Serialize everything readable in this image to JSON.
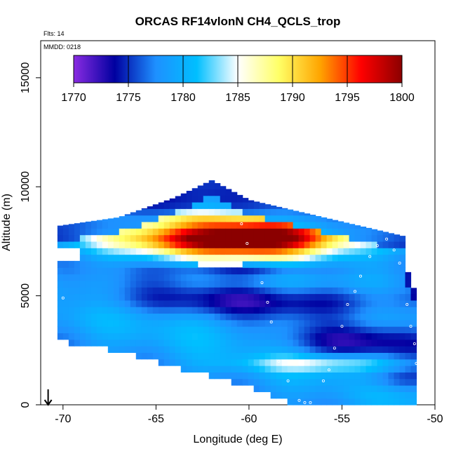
{
  "chart_data": {
    "type": "heatmap",
    "title": "ORCAS RF14vlonN CH4_QCLS_trop",
    "xlabel": "Longitude (deg E)",
    "ylabel": "Altitude (m)",
    "xlim": [
      -71.2,
      -50
    ],
    "ylim": [
      0,
      16700
    ],
    "x_ticks": [
      -70,
      -65,
      -60,
      -55,
      -50
    ],
    "y_ticks": [
      0,
      5000,
      10000,
      15000
    ],
    "annotations": {
      "flights": "Flts: 14",
      "date": "MMDD: 0218"
    },
    "colorbar": {
      "min": 1770,
      "max": 1800,
      "ticks": [
        1770,
        1775,
        1780,
        1785,
        1790,
        1795,
        1800
      ],
      "stops": [
        "#8a2be2",
        "#0000a0",
        "#1e90ff",
        "#00bfff",
        "#ffffff",
        "#ffff66",
        "#ffa500",
        "#ff0000",
        "#8b0000"
      ]
    },
    "grid": false,
    "legend": "colorbar-top",
    "field": {
      "x_start": -70.3,
      "x_end": -51.0,
      "y_step_m": 300,
      "upper_envelope": [
        [
          -70.3,
          8200
        ],
        [
          -67,
          8600
        ],
        [
          -64,
          9500
        ],
        [
          -62,
          10300
        ],
        [
          -60,
          9400
        ],
        [
          -58,
          9000
        ],
        [
          -55,
          8400
        ],
        [
          -53,
          8000
        ],
        [
          -51.5,
          7700
        ],
        [
          -51.5,
          6200
        ],
        [
          -51.0,
          5000
        ]
      ],
      "lower_envelope": [
        [
          -70.3,
          3100
        ],
        [
          -67,
          2600
        ],
        [
          -64,
          1900
        ],
        [
          -60,
          1000
        ],
        [
          -57,
          0
        ],
        [
          -51.0,
          0
        ]
      ],
      "gaps": [
        [
          -70.3,
          6700,
          7300
        ],
        [
          -61.5,
          6200,
          6600
        ]
      ],
      "features": [
        {
          "x": -59,
          "y": 7800,
          "sx": 3.5,
          "sy": 700,
          "value": 1795
        },
        {
          "x": -62,
          "y": 7600,
          "sx": 4.5,
          "sy": 500,
          "value": 1791
        },
        {
          "x": -64,
          "y": 8600,
          "sx": 4,
          "sy": 250,
          "value": 1784
        },
        {
          "x": -58,
          "y": 4800,
          "sx": 7,
          "sy": 500,
          "value": 1774
        },
        {
          "x": -54,
          "y": 2900,
          "sx": 3,
          "sy": 500,
          "value": 1774
        },
        {
          "x": -56,
          "y": 1900,
          "sx": 3,
          "sy": 250,
          "value": 1784
        },
        {
          "x": -60,
          "y": 6200,
          "sx": 3,
          "sy": 250,
          "value": 1773
        },
        {
          "x": -52,
          "y": 1200,
          "sx": 1.5,
          "sy": 400,
          "value": 1775
        }
      ],
      "background_value": 1779,
      "edge_value_top": 1772
    },
    "flight_track": [
      [
        -70.0,
        4900
      ],
      [
        -60.4,
        8300
      ],
      [
        -60.1,
        7400
      ],
      [
        -59.3,
        5600
      ],
      [
        -59.0,
        4700
      ],
      [
        -58.8,
        3800
      ],
      [
        -58.4,
        2000
      ],
      [
        -57.9,
        1100
      ],
      [
        -57.3,
        200
      ],
      [
        -57.0,
        100
      ],
      [
        -56.7,
        100
      ],
      [
        -56.0,
        1100
      ],
      [
        -55.7,
        1600
      ],
      [
        -55.4,
        2600
      ],
      [
        -55.0,
        3600
      ],
      [
        -54.7,
        4600
      ],
      [
        -54.3,
        5200
      ],
      [
        -54.0,
        5900
      ],
      [
        -53.5,
        6800
      ],
      [
        -53.1,
        7300
      ],
      [
        -52.6,
        7600
      ],
      [
        -52.2,
        7100
      ],
      [
        -51.9,
        6500
      ],
      [
        -51.5,
        4600
      ],
      [
        -51.3,
        3600
      ],
      [
        -51.1,
        2800
      ],
      [
        -51.0,
        1900
      ],
      [
        -50.9,
        900
      ],
      [
        -50.9,
        300
      ],
      [
        -50.9,
        100
      ]
    ],
    "arrow": {
      "x": -70.8
    }
  }
}
